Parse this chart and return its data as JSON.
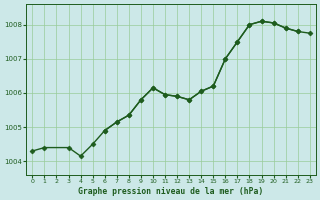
{
  "title": "Graphe pression niveau de la mer (hPa)",
  "bg_color": "#cce8e8",
  "grid_color": "#99cc99",
  "line_color": "#1e5c1e",
  "text_color": "#1e5c1e",
  "marker": "D",
  "marker_size": 2.5,
  "linewidth": 1.0,
  "xlim": [
    -0.5,
    23.5
  ],
  "ylim": [
    1003.6,
    1008.6
  ],
  "yticks": [
    1004,
    1005,
    1006,
    1007,
    1008
  ],
  "xticks": [
    0,
    1,
    2,
    3,
    4,
    5,
    6,
    7,
    8,
    9,
    10,
    11,
    12,
    13,
    14,
    15,
    16,
    17,
    18,
    19,
    20,
    21,
    22,
    23
  ],
  "line1_x": [
    0,
    1,
    3,
    4,
    5,
    6,
    7,
    8,
    9,
    10,
    11,
    12,
    13,
    14,
    15,
    16,
    17,
    18,
    19,
    20,
    21,
    22,
    23
  ],
  "line1_y": [
    1004.3,
    1004.4,
    1004.4,
    1004.15,
    1004.5,
    1004.9,
    1005.15,
    1005.35,
    1005.8,
    1006.15,
    1005.95,
    1005.9,
    1005.8,
    1006.05,
    1006.2,
    1007.0,
    1007.5,
    1008.0,
    1008.1,
    1008.05,
    1007.9,
    1007.8,
    1007.75
  ],
  "line2_x": [
    6,
    7,
    8,
    9,
    10,
    11,
    12,
    13,
    14,
    15,
    16,
    17,
    18,
    19,
    20,
    21,
    22
  ],
  "line2_y": [
    1004.9,
    1005.15,
    1005.35,
    1005.8,
    1006.15,
    1005.95,
    1005.9,
    1005.8,
    1006.05,
    1006.2,
    1007.0,
    1007.5,
    1008.0,
    1008.1,
    1008.05,
    1007.9,
    1007.8
  ]
}
